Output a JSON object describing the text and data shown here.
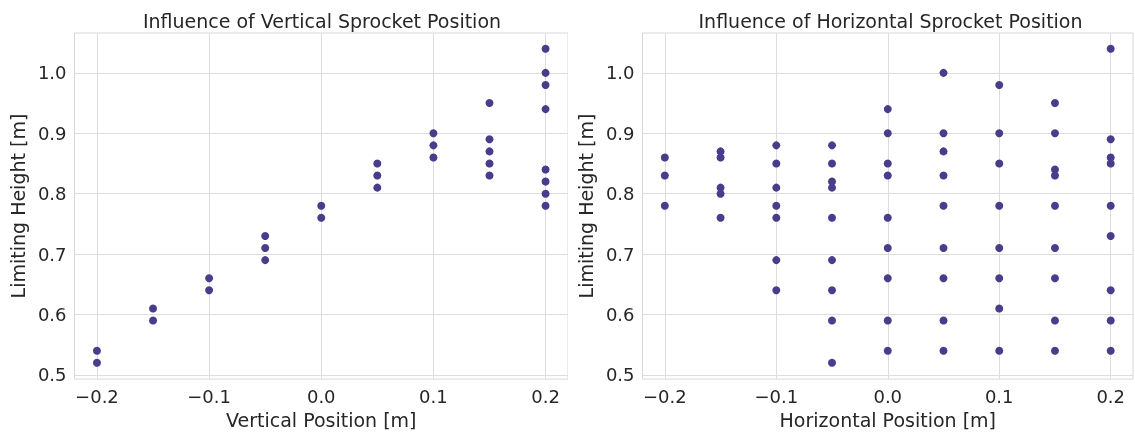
{
  "chart_data": [
    {
      "type": "scatter",
      "title": "Influence of Vertical Sprocket Position",
      "xlabel": "Vertical Position [m]",
      "ylabel": "Limiting Height [m]",
      "marker": "circle",
      "grid": true,
      "xlim": [
        -0.22,
        0.22
      ],
      "xticks": [
        {
          "value": -0.2,
          "label": "−0.2"
        },
        {
          "value": -0.1,
          "label": "−0.1"
        },
        {
          "value": 0,
          "label": "0.0"
        },
        {
          "value": 0.1,
          "label": "0.1"
        },
        {
          "value": 0.2,
          "label": "0.2"
        }
      ],
      "ylim": [
        0.493,
        1.066
      ],
      "yticks": [
        0.5,
        0.6,
        0.7,
        0.8,
        0.9,
        {
          "value": 1,
          "label": "1.0"
        }
      ],
      "series": [
        {
          "color": "#483d8b",
          "x": [
            -0.2,
            -0.2,
            -0.15,
            -0.15,
            -0.1,
            -0.1,
            -0.05,
            -0.05,
            -0.05,
            0,
            0,
            0.05,
            0.05,
            0.05,
            0.1,
            0.1,
            0.1,
            0.15,
            0.15,
            0.15,
            0.15,
            0.15,
            0.2,
            0.2,
            0.2,
            0.2,
            0.2,
            0.2,
            0.2,
            0.2
          ],
          "values": [
            0.54,
            0.52,
            0.61,
            0.59,
            0.66,
            0.64,
            0.73,
            0.71,
            0.69,
            0.78,
            0.76,
            0.85,
            0.83,
            0.81,
            0.9,
            0.88,
            0.86,
            0.95,
            0.89,
            0.87,
            0.85,
            0.83,
            1.04,
            1.0,
            0.98,
            0.94,
            0.84,
            0.82,
            0.8,
            0.78
          ]
        }
      ]
    },
    {
      "type": "scatter",
      "title": "Influence of Horizontal Sprocket Position",
      "xlabel": "Horizontal Position [m]",
      "ylabel": "Limiting Height [m]",
      "marker": "circle",
      "grid": true,
      "xlim": [
        -0.22,
        0.22
      ],
      "xticks": [
        {
          "value": -0.2,
          "label": "−0.2"
        },
        {
          "value": -0.1,
          "label": "−0.1"
        },
        {
          "value": 0,
          "label": "0.0"
        },
        {
          "value": 0.1,
          "label": "0.1"
        },
        {
          "value": 0.2,
          "label": "0.2"
        }
      ],
      "ylim": [
        0.493,
        1.066
      ],
      "yticks": [
        0.5,
        0.6,
        0.7,
        0.8,
        0.9,
        {
          "value": 1,
          "label": "1.0"
        }
      ],
      "series": [
        {
          "color": "#483d8b",
          "x": [
            -0.2,
            -0.2,
            -0.2,
            -0.15,
            -0.15,
            -0.15,
            -0.15,
            -0.15,
            -0.1,
            -0.1,
            -0.1,
            -0.1,
            -0.1,
            -0.1,
            -0.1,
            -0.05,
            -0.05,
            -0.05,
            -0.05,
            -0.05,
            -0.05,
            -0.05,
            -0.05,
            -0.05,
            0,
            0,
            0,
            0,
            0,
            0,
            0,
            0,
            0,
            0.05,
            0.05,
            0.05,
            0.05,
            0.05,
            0.05,
            0.05,
            0.05,
            0.05,
            0.1,
            0.1,
            0.1,
            0.1,
            0.1,
            0.1,
            0.1,
            0.1,
            0.15,
            0.15,
            0.15,
            0.15,
            0.15,
            0.15,
            0.15,
            0.15,
            0.15,
            0.2,
            0.2,
            0.2,
            0.2,
            0.2,
            0.2,
            0.2,
            0.2,
            0.2
          ],
          "values": [
            0.86,
            0.83,
            0.78,
            0.87,
            0.86,
            0.81,
            0.8,
            0.76,
            0.88,
            0.85,
            0.81,
            0.78,
            0.76,
            0.69,
            0.64,
            0.88,
            0.85,
            0.82,
            0.81,
            0.76,
            0.69,
            0.64,
            0.59,
            0.52,
            0.94,
            0.9,
            0.85,
            0.83,
            0.76,
            0.71,
            0.66,
            0.59,
            0.54,
            1.0,
            0.9,
            0.87,
            0.83,
            0.78,
            0.71,
            0.66,
            0.59,
            0.54,
            0.98,
            0.9,
            0.85,
            0.78,
            0.71,
            0.66,
            0.61,
            0.54,
            0.95,
            0.9,
            0.84,
            0.83,
            0.78,
            0.71,
            0.66,
            0.59,
            0.54,
            1.04,
            0.89,
            0.86,
            0.85,
            0.78,
            0.73,
            0.64,
            0.59,
            0.54
          ]
        }
      ]
    }
  ]
}
